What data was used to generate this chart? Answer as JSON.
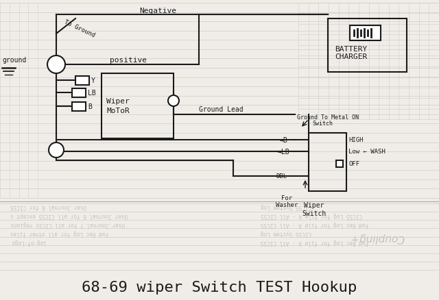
{
  "bg_color": "#f0ede8",
  "paper_color": "#f5f2ed",
  "title": "68-69 wiper Switch TEST Hookup",
  "title_fontsize": 16,
  "line_color": "#1a1a1a",
  "text_color": "#1a1a1a",
  "watermark_color": "#c8c0b8",
  "grid_lines_color": "#d0ccc8",
  "lower_text_left": [
    "User Journal 6 for CICSS",
    "User Journal 6 for all CICSS except s",
    "User Journal 7 for all CICSS regions",
    "Fwd Rec Log for all other files",
    "Log-of-Logs"
  ],
  "lower_text_right": [
    "CICSS System Log",
    "CICSS Log for file A - All CICSS",
    "Fwd Rec Log for file A - All CICSS",
    "CICSS System Log",
    "Fwd Rec Log for file A - All CICSS"
  ],
  "coupling_text": "Coupling+"
}
